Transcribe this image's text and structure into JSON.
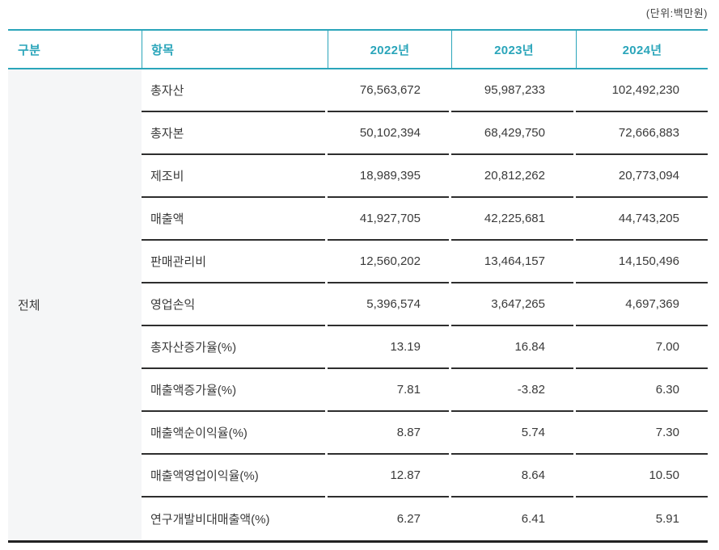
{
  "unit_note": "(단위:백만원)",
  "chart_data": {
    "type": "table",
    "unit_label": "(단위:백만원)",
    "columns": [
      "구분",
      "항목",
      "2022년",
      "2023년",
      "2024년"
    ],
    "category": "전체",
    "rows": [
      {
        "item": "총자산",
        "y2022": "76,563,672",
        "y2023": "95,987,233",
        "y2024": "102,492,230"
      },
      {
        "item": "총자본",
        "y2022": "50,102,394",
        "y2023": "68,429,750",
        "y2024": "72,666,883"
      },
      {
        "item": "제조비",
        "y2022": "18,989,395",
        "y2023": "20,812,262",
        "y2024": "20,773,094"
      },
      {
        "item": "매출액",
        "y2022": "41,927,705",
        "y2023": "42,225,681",
        "y2024": "44,743,205"
      },
      {
        "item": "판매관리비",
        "y2022": "12,560,202",
        "y2023": "13,464,157",
        "y2024": "14,150,496"
      },
      {
        "item": "영업손익",
        "y2022": "5,396,574",
        "y2023": "3,647,265",
        "y2024": "4,697,369"
      },
      {
        "item": "총자산증가율(%)",
        "y2022": "13.19",
        "y2023": "16.84",
        "y2024": "7.00"
      },
      {
        "item": "매출액증가율(%)",
        "y2022": "7.81",
        "y2023": "-3.82",
        "y2024": "6.30"
      },
      {
        "item": "매출액순이익율(%)",
        "y2022": "8.87",
        "y2023": "5.74",
        "y2024": "7.30"
      },
      {
        "item": "매출액영업이익율(%)",
        "y2022": "12.87",
        "y2023": "8.64",
        "y2024": "10.50"
      },
      {
        "item": "연구개발비대매출액(%)",
        "y2022": "6.27",
        "y2023": "6.41",
        "y2024": "5.91"
      }
    ]
  },
  "colors": {
    "accent": "#2aa5ba",
    "row_line": "#2e2e2e",
    "table_bottom_line": "#222222",
    "category_bg": "#f5f6f7",
    "text": "#3a3a3a"
  }
}
